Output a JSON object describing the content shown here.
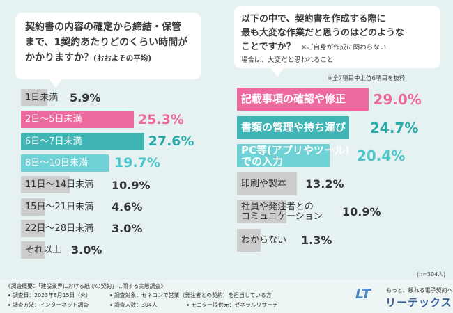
{
  "chart_data": [
    {
      "type": "bar",
      "orientation": "horizontal",
      "title": "契約書の内容の確定から締結・保管まで、1契約あたりどのくらい時間がかかりますか？(おおよその平均)",
      "title_lines": [
        "契約書の内容の確定から締結・保管",
        "まで、1契約あたりどのくらい時間が",
        "かかりますか？"
      ],
      "title_suffix": "(おおよその平均)",
      "categories": [
        "1日未満",
        "2日〜5日未満",
        "6日〜7日未満",
        "8日〜10日未満",
        "11日〜14日未満",
        "15日〜21日未満",
        "22日〜28日未満",
        "それ以上"
      ],
      "values": [
        5.9,
        25.3,
        27.6,
        19.7,
        10.9,
        4.6,
        3.0,
        3.0
      ],
      "value_labels": [
        "5.9%",
        "25.3%",
        "27.6%",
        "19.7%",
        "10.9%",
        "4.6%",
        "3.0%",
        "3.0%"
      ],
      "colors": [
        "#cccccc",
        "#ec6a9d",
        "#3fb5b5",
        "#6fd2d6",
        "#cccccc",
        "#cccccc",
        "#cccccc",
        "#cccccc"
      ],
      "value_colors": [
        "#333333",
        "#ec6a9d",
        "#2ba9a9",
        "#4cc6cb",
        "#333333",
        "#333333",
        "#333333",
        "#333333"
      ],
      "label_colors": [
        "#333333",
        "#ffffff",
        "#ffffff",
        "#ffffff",
        "#333333",
        "#333333",
        "#333333",
        "#333333"
      ],
      "xlim": [
        0,
        30
      ]
    },
    {
      "type": "bar",
      "orientation": "horizontal",
      "title": "以下の中で、契約書を作成する際に最も大変な作業だと思うのはどのようなことですか？",
      "title_lines": [
        "以下の中で、契約書を作成する際に",
        "最も大変な作業だと思うのはどのような"
      ],
      "title_line3": "ことですか？",
      "title_note_a": "※ご自身が作成に関わらない",
      "title_note_b": "場合は、大変だと思われること",
      "subnote": "※全7項目中上位6項目を抜粋",
      "categories": [
        "記載事項の確認や修正",
        "書類の管理や持ち運び",
        "PC等(アプリやツール)での入力",
        "印刷や製本",
        "社員や発注者とのコミュニケーション",
        "わからない"
      ],
      "category_lines": [
        [
          "記載事項の確認や修正"
        ],
        [
          "書類の管理や持ち運び"
        ],
        [
          "PC等(アプリやツール)",
          "での入力"
        ],
        [
          "印刷や製本"
        ],
        [
          "社員や発注者との",
          "コミュニケーション"
        ],
        [
          "わからない"
        ]
      ],
      "values": [
        29.0,
        24.7,
        20.4,
        13.2,
        10.9,
        1.3
      ],
      "value_labels": [
        "29.0%",
        "24.7%",
        "20.4%",
        "13.2%",
        "10.9%",
        "1.3%"
      ],
      "colors": [
        "#ec6a9d",
        "#3fb5b5",
        "#6fd2d6",
        "#cccccc",
        "#cccccc",
        "#cccccc"
      ],
      "value_colors": [
        "#ec6a9d",
        "#2ba9a9",
        "#4cc6cb",
        "#333333",
        "#333333",
        "#333333"
      ],
      "label_colors": [
        "#ffffff",
        "#ffffff",
        "#ffffff",
        "#333333",
        "#333333",
        "#333333"
      ],
      "xlim": [
        0,
        30
      ],
      "n_label": "(n=304人)"
    }
  ],
  "footer": {
    "heading": "《調査概要：「建設業界における紙での契約」に関する実態調査》",
    "items": [
      "調査日：2023年8月15日（火）",
      "調査対象：ゼネコンで営業（発注者との契約）を担当している方",
      "調査方法：インターネット調査",
      "調査人数：304人",
      "モニター提供元：ゼネラルリサーチ"
    ]
  },
  "logo": {
    "mark": "LT",
    "tagline": "もっと、頼れる電子契約へ",
    "name": "リーテックス"
  },
  "palette": {
    "background": "#e6f1f1",
    "pink": "#ec6a9d",
    "teal": "#3fb5b5",
    "light_teal": "#6fd2d6",
    "gray": "#cccccc"
  }
}
